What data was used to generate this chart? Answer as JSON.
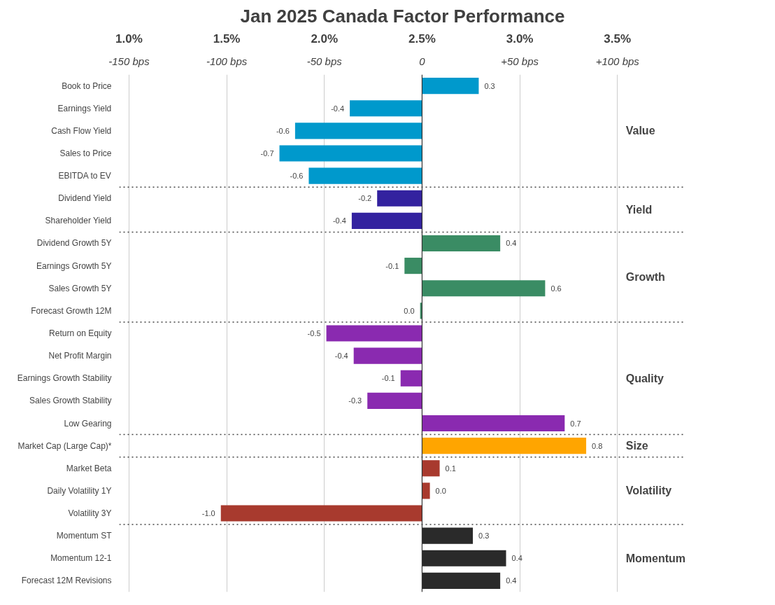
{
  "chart_data": {
    "type": "bar",
    "orientation": "horizontal",
    "title": "Jan 2025 Canada Factor Performance",
    "categories": [
      "Book to Price",
      "Earnings Yield",
      "Cash Flow Yield",
      "Sales to Price",
      "EBITDA to EV",
      "Dividend Yield",
      "Shareholder Yield",
      "Dividend Growth 5Y",
      "Earnings Growth 5Y",
      "Sales Growth 5Y",
      "Forecast Growth 12M",
      "Return on Equity",
      "Net Profit Margin",
      "Earnings Growth Stability",
      "Sales Growth Stability",
      "Low Gearing",
      "Market Cap (Large Cap)*",
      "Market Beta",
      "Daily Volatility 1Y",
      "Volatility 3Y",
      "Momentum ST",
      "Momentum 12-1",
      "Forecast 12M Revisions"
    ],
    "values": [
      0.29,
      -0.37,
      -0.65,
      -0.73,
      -0.58,
      -0.23,
      -0.36,
      0.4,
      -0.09,
      0.63,
      -0.01,
      -0.49,
      -0.35,
      -0.11,
      -0.28,
      0.73,
      0.84,
      0.09,
      0.04,
      -1.03,
      0.26,
      0.43,
      0.4
    ],
    "value_labels": [
      "0.3",
      "-0.4",
      "-0.6",
      "-0.7",
      "-0.6",
      "-0.2",
      "-0.4",
      "0.4",
      "-0.1",
      "0.6",
      "0.0",
      "-0.5",
      "-0.4",
      "-0.1",
      "-0.3",
      "0.7",
      "0.8",
      "0.1",
      "0.0",
      "-1.0",
      "0.3",
      "0.4",
      "0.4"
    ],
    "colors": [
      "#0099cc",
      "#0099cc",
      "#0099cc",
      "#0099cc",
      "#0099cc",
      "#33229f",
      "#33229f",
      "#3a8c64",
      "#3a8c64",
      "#3a8c64",
      "#3a8c64",
      "#8a2ab0",
      "#8a2ab0",
      "#8a2ab0",
      "#8a2ab0",
      "#8a2ab0",
      "#ffa500",
      "#a83a2e",
      "#a83a2e",
      "#a83a2e",
      "#2a2a2a",
      "#2a2a2a",
      "#2a2a2a"
    ],
    "base": [
      2.5,
      2.5,
      2.5,
      2.5,
      2.5,
      2.5,
      2.5,
      2.5,
      2.5,
      2.5,
      2.5,
      2.5,
      2.5,
      2.5,
      2.5,
      2.5,
      2.5,
      2.5,
      2.5,
      2.5,
      2.5,
      2.5,
      2.5
    ],
    "xlim": [
      0.95,
      3.85
    ],
    "xticks": [
      {
        "value": 1.0,
        "label": "1.0%"
      },
      {
        "value": 1.5,
        "label": "1.5%"
      },
      {
        "value": 2.0,
        "label": "2.0%"
      },
      {
        "value": 2.5,
        "label": "2.5%"
      },
      {
        "value": 3.0,
        "label": "3.0%"
      },
      {
        "value": 3.5,
        "label": "3.5%"
      }
    ],
    "x2lim": [
      -155,
      135
    ],
    "x2ticks": [
      {
        "value": -150,
        "label": "-150 bps"
      },
      {
        "value": -100,
        "label": "-100 bps"
      },
      {
        "value": -50,
        "label": "-50 bps"
      },
      0,
      {
        "value": 50,
        "label": "+50 bps"
      },
      {
        "value": 100,
        "label": "+100 bps"
      }
    ],
    "grid": "x",
    "annotations": [
      "Value",
      "Yield",
      "Growth",
      "Quality",
      "Size",
      "Volatility",
      "Momentum"
    ]
  }
}
